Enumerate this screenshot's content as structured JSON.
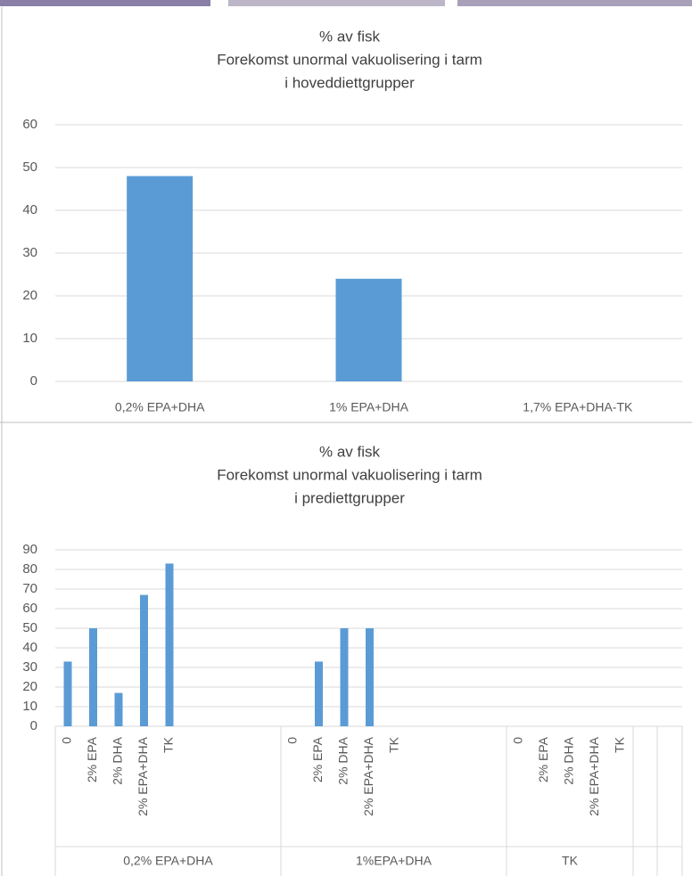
{
  "chart_data": [
    {
      "type": "bar",
      "title": [
        "% av fisk",
        "Forekomst unormal vakuolisering i tarm",
        "i hoveddiettgrupper"
      ],
      "categories": [
        "0,2% EPA+DHA",
        "1% EPA+DHA",
        "1,7% EPA+DHA-TK"
      ],
      "values": [
        48,
        24,
        0
      ],
      "color": "#5b9bd5",
      "ylim": [
        0,
        60
      ],
      "yticks": [
        0,
        10,
        20,
        30,
        40,
        50,
        60
      ],
      "grid": true
    },
    {
      "type": "grouped-bar",
      "title": [
        "% av fisk",
        "Forekomst unormal vakuolisering i tarm",
        "i prediettgrupper"
      ],
      "groups": [
        {
          "name": "0,2% EPA+DHA",
          "categories": [
            "0",
            "2% EPA",
            "2% DHA",
            "2% EPA+DHA",
            "TK"
          ],
          "values": [
            33,
            50,
            17,
            67,
            83
          ]
        },
        {
          "name": "1%EPA+DHA",
          "categories": [
            "0",
            "2% EPA",
            "2% DHA",
            "2% EPA+DHA",
            "TK"
          ],
          "values": [
            0,
            33,
            50,
            50,
            0
          ]
        },
        {
          "name": "TK",
          "categories": [
            "0",
            "2% EPA",
            "2% DHA",
            "2% EPA+DHA",
            "TK"
          ],
          "values": [
            0,
            0,
            0,
            0,
            0
          ]
        }
      ],
      "color": "#5b9bd5",
      "ylim": [
        0,
        90
      ],
      "yticks": [
        0,
        10,
        20,
        30,
        40,
        50,
        60,
        70,
        80,
        90
      ],
      "grid": true
    }
  ]
}
